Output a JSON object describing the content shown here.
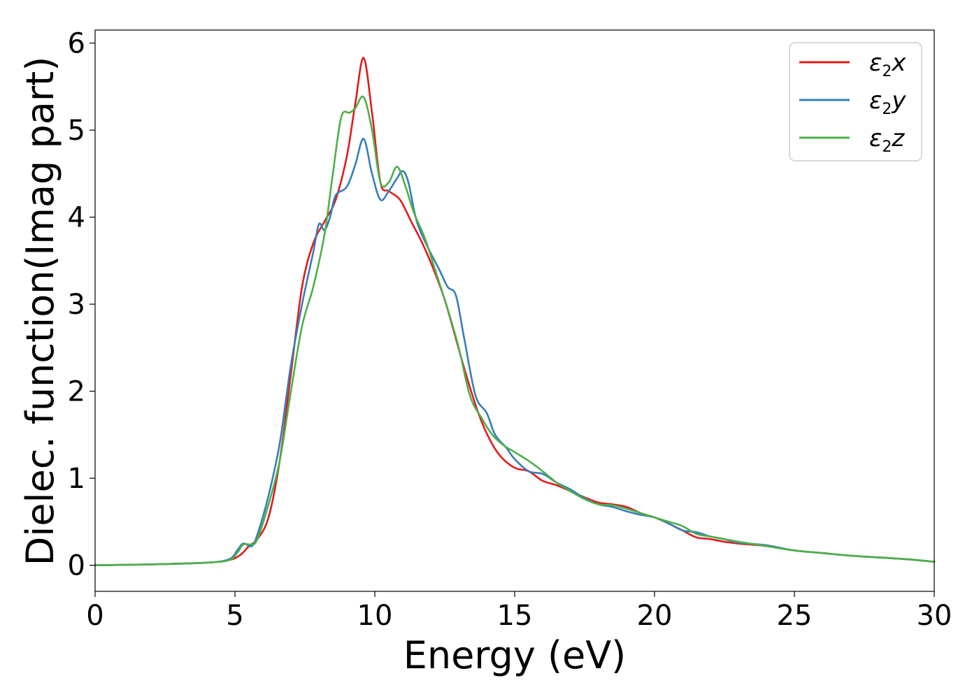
{
  "chart_data": {
    "type": "line",
    "title": "",
    "xlabel": "Energy (eV)",
    "ylabel": "Dielec. function(Imag part)",
    "xlim": [
      0,
      30
    ],
    "ylim": [
      -0.3,
      6.15
    ],
    "xticks": [
      0,
      5,
      10,
      15,
      20,
      25,
      30
    ],
    "xtick_labels": [
      "0",
      "5",
      "10",
      "15",
      "20",
      "25",
      "30"
    ],
    "yticks": [
      0,
      1,
      2,
      3,
      4,
      5,
      6
    ],
    "ytick_labels": [
      "0",
      "1",
      "2",
      "3",
      "4",
      "5",
      "6"
    ],
    "grid": false,
    "legend_position": "top-right",
    "series": [
      {
        "name": "ε₂x",
        "legend_base": "ε",
        "legend_sub": "2",
        "legend_var": "x",
        "color": "#e41a1c",
        "x": [
          0,
          2,
          4,
          4.8,
          5.2,
          5.5,
          5.8,
          6.2,
          6.6,
          7.0,
          7.4,
          7.8,
          8.2,
          8.6,
          9.0,
          9.3,
          9.6,
          9.9,
          10.2,
          10.5,
          10.9,
          11.3,
          11.7,
          12.1,
          12.5,
          12.9,
          13.3,
          13.7,
          14.1,
          14.5,
          15.0,
          15.5,
          16.0,
          16.5,
          17.0,
          17.5,
          18.0,
          18.5,
          19.0,
          19.5,
          20.0,
          20.5,
          21.0,
          21.5,
          22.0,
          22.5,
          23.0,
          24.0,
          25.0,
          26.0,
          27.0,
          28.0,
          29.0,
          30.0
        ],
        "y": [
          0.0,
          0.01,
          0.03,
          0.06,
          0.12,
          0.22,
          0.3,
          0.55,
          1.2,
          2.2,
          3.2,
          3.7,
          3.95,
          4.2,
          4.7,
          5.3,
          5.83,
          5.2,
          4.4,
          4.3,
          4.2,
          3.95,
          3.7,
          3.4,
          3.05,
          2.6,
          2.15,
          1.75,
          1.45,
          1.25,
          1.12,
          1.08,
          0.97,
          0.92,
          0.85,
          0.78,
          0.72,
          0.7,
          0.67,
          0.6,
          0.55,
          0.48,
          0.4,
          0.32,
          0.3,
          0.27,
          0.25,
          0.22,
          0.17,
          0.14,
          0.11,
          0.09,
          0.07,
          0.04
        ]
      },
      {
        "name": "ε₂y",
        "legend_base": "ε",
        "legend_sub": "2",
        "legend_var": "y",
        "color": "#377eb8",
        "x": [
          0,
          2,
          4,
          4.8,
          5.1,
          5.3,
          5.6,
          5.8,
          6.2,
          6.6,
          7.0,
          7.4,
          7.8,
          8.0,
          8.2,
          8.4,
          8.6,
          9.0,
          9.3,
          9.6,
          9.9,
          10.2,
          10.5,
          10.8,
          11.0,
          11.2,
          11.5,
          11.9,
          12.3,
          12.6,
          12.9,
          13.2,
          13.6,
          14.0,
          14.3,
          14.7,
          15.0,
          15.5,
          16.0,
          16.5,
          17.0,
          17.5,
          18.0,
          18.5,
          19.0,
          19.5,
          20.0,
          20.5,
          21.0,
          21.5,
          22.0,
          22.5,
          23.0,
          24.0,
          25.0,
          26.0,
          27.0,
          28.0,
          29.0,
          30.0
        ],
        "y": [
          0.0,
          0.01,
          0.03,
          0.07,
          0.18,
          0.25,
          0.22,
          0.35,
          0.8,
          1.4,
          2.3,
          3.0,
          3.6,
          3.92,
          3.85,
          4.0,
          4.25,
          4.35,
          4.6,
          4.9,
          4.5,
          4.2,
          4.3,
          4.45,
          4.53,
          4.4,
          3.95,
          3.65,
          3.4,
          3.2,
          3.1,
          2.6,
          1.95,
          1.75,
          1.5,
          1.35,
          1.22,
          1.08,
          1.05,
          0.95,
          0.87,
          0.77,
          0.7,
          0.67,
          0.62,
          0.58,
          0.55,
          0.48,
          0.4,
          0.38,
          0.33,
          0.3,
          0.26,
          0.23,
          0.17,
          0.14,
          0.11,
          0.09,
          0.07,
          0.04
        ]
      },
      {
        "name": "ε₂z",
        "legend_base": "ε",
        "legend_sub": "2",
        "legend_var": "z",
        "color": "#4daf4a",
        "x": [
          0,
          2,
          4,
          4.8,
          5.1,
          5.3,
          5.6,
          5.8,
          6.2,
          6.6,
          7.0,
          7.4,
          7.8,
          8.2,
          8.5,
          8.8,
          9.1,
          9.3,
          9.6,
          9.9,
          10.2,
          10.5,
          10.8,
          11.1,
          11.4,
          11.8,
          12.2,
          12.6,
          13.0,
          13.4,
          13.8,
          14.2,
          14.6,
          15.0,
          15.5,
          16.0,
          16.5,
          17.0,
          17.5,
          18.0,
          18.5,
          19.0,
          19.5,
          20.0,
          20.5,
          21.0,
          21.5,
          22.0,
          22.5,
          23.0,
          24.0,
          25.0,
          26.0,
          27.0,
          28.0,
          29.0,
          30.0
        ],
        "y": [
          0.0,
          0.01,
          0.03,
          0.06,
          0.15,
          0.24,
          0.24,
          0.3,
          0.7,
          1.2,
          2.0,
          2.75,
          3.2,
          3.8,
          4.5,
          5.15,
          5.2,
          5.25,
          5.38,
          5.0,
          4.4,
          4.4,
          4.58,
          4.35,
          4.05,
          3.75,
          3.35,
          2.95,
          2.5,
          1.95,
          1.7,
          1.5,
          1.38,
          1.3,
          1.2,
          1.08,
          0.95,
          0.85,
          0.76,
          0.7,
          0.69,
          0.65,
          0.6,
          0.55,
          0.5,
          0.45,
          0.36,
          0.33,
          0.3,
          0.27,
          0.22,
          0.17,
          0.14,
          0.11,
          0.09,
          0.07,
          0.04
        ]
      }
    ]
  }
}
